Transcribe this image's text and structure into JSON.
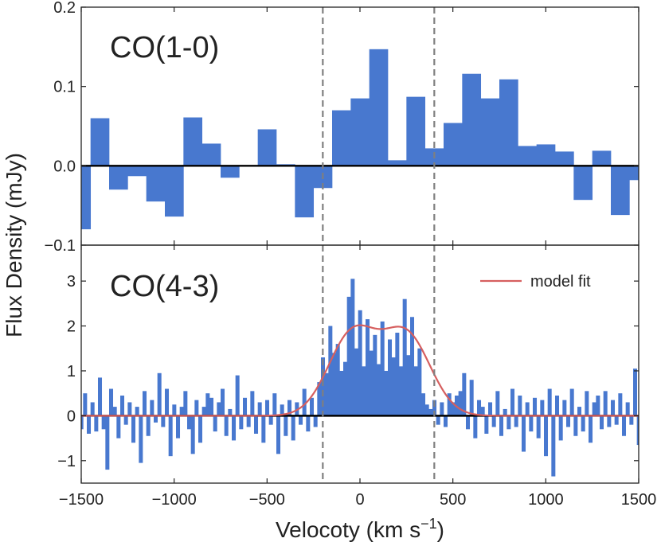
{
  "colors": {
    "bars": "#4878cf",
    "model": "#d65f5f",
    "vlines": "#7f7f7f",
    "zeroline": "#000000",
    "frame": "#222222"
  },
  "chart_data": {
    "type": "bar",
    "xlabel_main": "Velocoty (km s",
    "xlabel_sup": "−1",
    "xlabel_close": ")",
    "ylabel": "Flux Density (mJy)",
    "xlim": [
      -1500,
      1500
    ],
    "xticks": [
      -1500,
      -1000,
      -500,
      0,
      500,
      1000,
      1500
    ],
    "xtick_labels": [
      "−1500",
      "−1000",
      "−500",
      "0",
      "500",
      "1000",
      "1500"
    ],
    "vlines": [
      -200,
      400
    ],
    "panels": [
      {
        "label": "CO(1-0)",
        "ylim": [
          -0.1,
          0.2
        ],
        "yticks": [
          -0.1,
          0.0,
          0.1,
          0.2
        ],
        "ytick_labels": [
          "−0.1",
          "0.0",
          "0.1",
          "0.2"
        ],
        "bin_width": 100,
        "x": [
          -1500,
          -1400,
          -1300,
          -1200,
          -1100,
          -1000,
          -900,
          -800,
          -700,
          -600,
          -500,
          -400,
          -300,
          -200,
          -100,
          0,
          100,
          200,
          300,
          400,
          500,
          600,
          700,
          800,
          900,
          1000,
          1100,
          1200,
          1300,
          1400,
          1500
        ],
        "values": [
          -0.08,
          0.06,
          -0.03,
          -0.013,
          -0.045,
          -0.064,
          0.061,
          0.028,
          -0.015,
          0.0,
          0.046,
          0.002,
          -0.065,
          -0.028,
          0.07,
          0.085,
          0.147,
          0.007,
          0.087,
          0.022,
          0.054,
          0.116,
          0.085,
          0.109,
          0.025,
          0.027,
          0.018,
          -0.043,
          0.019,
          -0.062,
          -0.018
        ]
      },
      {
        "label": "CO(4-3)",
        "ylim": [
          -1.5,
          3.8
        ],
        "yticks": [
          -1,
          0,
          1,
          2,
          3
        ],
        "ytick_labels": [
          "−1",
          "0",
          "1",
          "2",
          "3"
        ],
        "bin_width": 20,
        "x": [
          -1500,
          -1480,
          -1460,
          -1440,
          -1420,
          -1400,
          -1380,
          -1360,
          -1340,
          -1320,
          -1300,
          -1280,
          -1260,
          -1240,
          -1220,
          -1200,
          -1180,
          -1160,
          -1140,
          -1120,
          -1100,
          -1080,
          -1060,
          -1040,
          -1020,
          -1000,
          -980,
          -960,
          -940,
          -920,
          -900,
          -880,
          -860,
          -840,
          -820,
          -800,
          -780,
          -760,
          -740,
          -720,
          -700,
          -680,
          -660,
          -640,
          -620,
          -600,
          -580,
          -560,
          -540,
          -520,
          -500,
          -480,
          -460,
          -440,
          -420,
          -400,
          -380,
          -360,
          -340,
          -320,
          -300,
          -280,
          -260,
          -240,
          -220,
          -200,
          -180,
          -160,
          -140,
          -120,
          -100,
          -80,
          -60,
          -40,
          -20,
          0,
          20,
          40,
          60,
          80,
          100,
          120,
          140,
          160,
          180,
          200,
          220,
          240,
          260,
          280,
          300,
          320,
          340,
          360,
          380,
          400,
          420,
          440,
          460,
          480,
          500,
          520,
          540,
          560,
          580,
          600,
          620,
          640,
          660,
          680,
          700,
          720,
          740,
          760,
          780,
          800,
          820,
          840,
          860,
          880,
          900,
          920,
          940,
          960,
          980,
          1000,
          1020,
          1040,
          1060,
          1080,
          1100,
          1120,
          1140,
          1160,
          1180,
          1200,
          1220,
          1240,
          1260,
          1280,
          1300,
          1320,
          1340,
          1360,
          1380,
          1400,
          1420,
          1440,
          1460,
          1480,
          1500
        ],
        "values": [
          -0.3,
          0.5,
          -0.4,
          0.3,
          -0.35,
          0.85,
          -0.3,
          -1.2,
          0.6,
          0.2,
          -0.5,
          0.45,
          -0.2,
          0.3,
          -0.6,
          0.2,
          -1.05,
          0.55,
          -0.45,
          0.35,
          -0.15,
          0.95,
          -0.25,
          0.6,
          -0.9,
          0.25,
          -0.5,
          0.2,
          0.55,
          -0.3,
          -0.85,
          0.35,
          -0.6,
          0.2,
          0.5,
          0.4,
          -0.35,
          0.3,
          0.6,
          -0.45,
          0.15,
          -0.55,
          0.9,
          -0.3,
          0.4,
          -0.25,
          0.55,
          -0.4,
          0.3,
          -0.6,
          0.35,
          -0.2,
          0.5,
          -0.85,
          0.25,
          -0.45,
          0.35,
          -0.55,
          0.3,
          -0.2,
          0.6,
          -0.35,
          0.4,
          -0.25,
          0.75,
          1.3,
          0.95,
          2.0,
          1.4,
          1.6,
          1.0,
          1.2,
          2.65,
          3.05,
          1.5,
          2.35,
          1.1,
          2.15,
          1.45,
          1.8,
          1.15,
          2.1,
          1.0,
          1.7,
          1.3,
          1.85,
          1.1,
          2.6,
          1.35,
          2.2,
          1.1,
          1.5,
          0.5,
          0.25,
          0.15,
          0.35,
          -0.2,
          0.3,
          -0.25,
          0.5,
          0.3,
          0.45,
          0.55,
          0.95,
          -0.3,
          0.8,
          -0.5,
          0.35,
          0.2,
          -0.4,
          0.3,
          -0.25,
          0.55,
          -0.45,
          0.15,
          -0.3,
          0.6,
          -0.25,
          0.45,
          -0.8,
          0.3,
          -0.35,
          0.4,
          -0.5,
          0.35,
          -0.9,
          0.6,
          -1.35,
          0.45,
          -0.55,
          0.35,
          -0.25,
          0.6,
          -0.45,
          0.2,
          -0.35,
          0.55,
          -0.6,
          0.3,
          0.45,
          -0.3,
          0.55,
          -0.25,
          0.35,
          -0.2,
          0.5,
          -0.45,
          0.3,
          -0.2,
          1.05,
          -0.65
        ],
        "legend": "model fit",
        "model": {
          "peaks": [
            {
              "center": -40,
              "sigma": 130,
              "amp": 1.82
            },
            {
              "center": 250,
              "sigma": 130,
              "amp": 1.78
            }
          ]
        }
      }
    ]
  }
}
